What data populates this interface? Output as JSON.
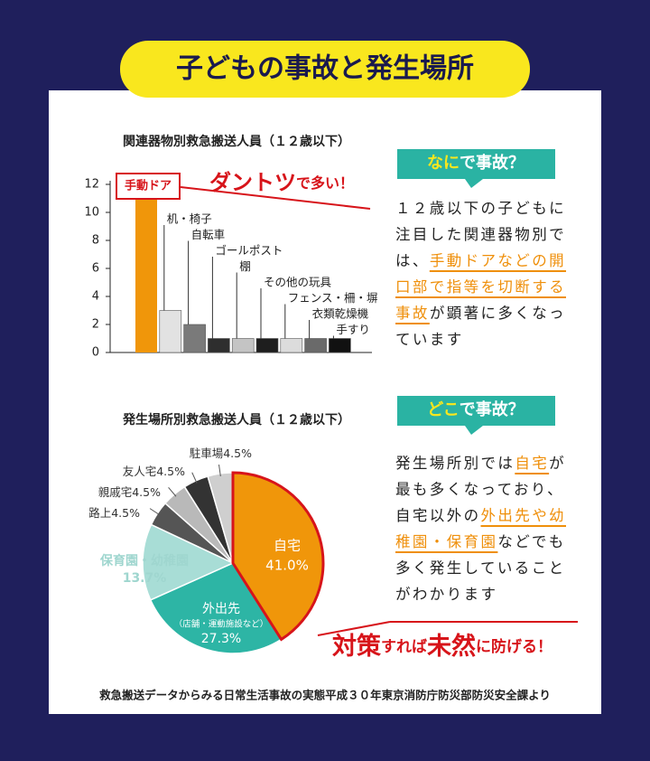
{
  "title": "子どもの事故と発生場所",
  "chart_data": [
    {
      "type": "bar",
      "title": "関連器物別救急搬送人員（１２歳以下）",
      "categories": [
        "手動ドア",
        "机・椅子",
        "自転車",
        "ゴールポスト",
        "棚",
        "その他の玩具",
        "フェンス・柵・塀",
        "衣類乾燥機",
        "手すり"
      ],
      "values": [
        11.5,
        3,
        2,
        1,
        1,
        1,
        1,
        1,
        1
      ],
      "colors": [
        "#f0960a",
        "#e2e2e2",
        "#7a7a7a",
        "#2e2e2e",
        "#c4c4c4",
        "#1e1e1e",
        "#dcdcdc",
        "#6a6a6a",
        "#111111"
      ],
      "ylim": [
        0,
        12
      ],
      "yticks": [
        0,
        2,
        4,
        6,
        8,
        10,
        12
      ],
      "annotation": [
        "ダントツ",
        "で多い！"
      ]
    },
    {
      "type": "pie",
      "title": "発生場所別救急搬送人員（１２歳以下）",
      "categories": [
        "自宅",
        "外出先",
        "保育園・幼稚園",
        "路上",
        "親戚宅",
        "友人宅",
        "駐車場"
      ],
      "values": [
        41.0,
        27.3,
        13.7,
        4.5,
        4.5,
        4.5,
        4.5
      ],
      "value_labels": [
        "41.0%",
        "27.3%",
        "13.7%",
        "4.5%",
        "4.5%",
        "4.5%",
        "4.5%"
      ],
      "colors": [
        "#f0960a",
        "#2db5a5",
        "#a8ddd6",
        "#555555",
        "#b9b9b9",
        "#333333",
        "#cfcfcf"
      ],
      "annotations": [
        "（店舗・運動施設など）"
      ]
    }
  ],
  "sections": [
    {
      "heading": [
        "なに",
        "で事故？"
      ],
      "body": [
        "１２歳以下の子どもに注目した関連器物別では、",
        "手動ドアなどの開口部で指等を切断する事故",
        "が顕著に多くなっています"
      ]
    },
    {
      "heading": [
        "どこ",
        "で事故？"
      ],
      "body": [
        "発生場所別では",
        "自宅",
        "が最も多くなっており、自宅以外の",
        "外出先や幼稚園・保育園",
        "などでも多く発生していることがわかります"
      ]
    }
  ],
  "callout": [
    "対策",
    "すれば",
    "未然",
    "に防げる！"
  ],
  "source": "救急搬送データからみる日常生活事故の実態平成３０年東京消防庁防災部防災安全課より"
}
